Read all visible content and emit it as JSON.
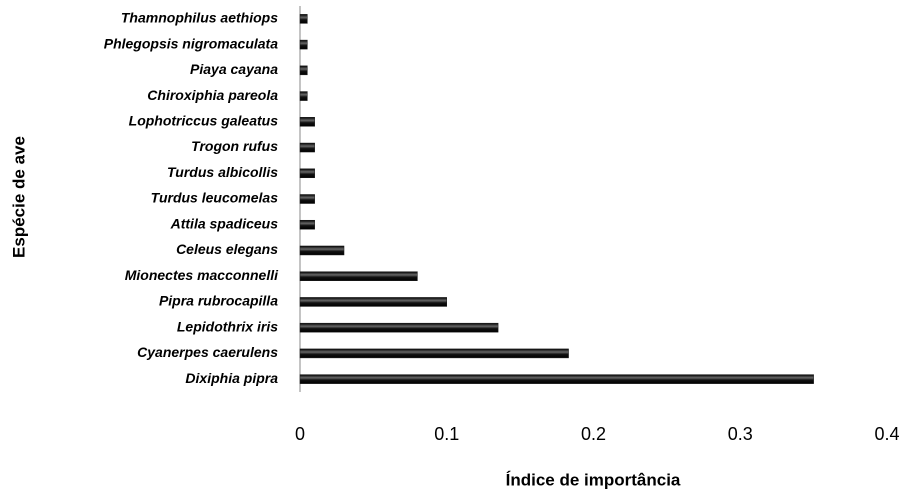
{
  "chart_data": {
    "type": "bar",
    "orientation": "horizontal",
    "x_label": "Índice de importância",
    "y_label": "Espécie de ave",
    "categories": [
      "Thamnophilus aethiops",
      "Phlegopsis nigromaculata",
      "Piaya cayana",
      "Chiroxiphia pareola",
      "Lophotriccus galeatus",
      "Trogon rufus",
      "Turdus albicollis",
      "Turdus leucomelas",
      "Attila spadiceus",
      "Celeus elegans",
      "Mionectes macconnelli",
      "Pipra rubrocapilla",
      "Lepidothrix iris",
      "Cyanerpes caerulens",
      "Dixiphia pipra"
    ],
    "values": [
      0.005,
      0.005,
      0.005,
      0.005,
      0.01,
      0.01,
      0.01,
      0.01,
      0.01,
      0.03,
      0.08,
      0.1,
      0.135,
      0.183,
      0.35
    ],
    "color": "#1a1a1a",
    "xlim": [
      0,
      0.4
    ],
    "xticks": [
      0,
      0.1,
      0.2,
      0.3,
      0.4
    ],
    "grid": false
  }
}
